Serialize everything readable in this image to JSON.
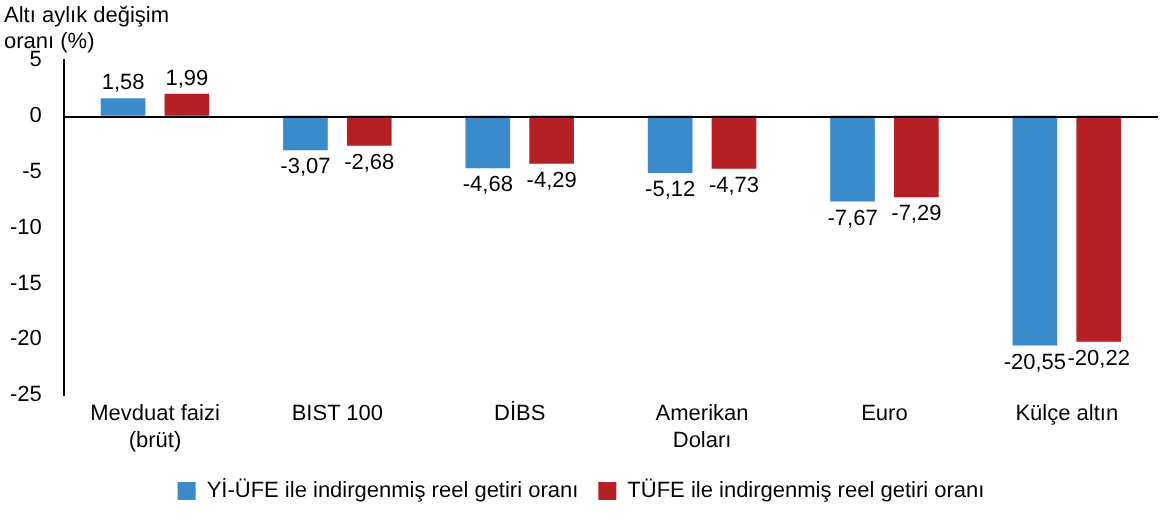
{
  "chart_data": {
    "type": "bar",
    "ylabel": "Altı aylık değişim oranı (%)",
    "categories": [
      "Mevduat faizi (brüt)",
      "BIST 100",
      "DİBS",
      "Amerikan Doları",
      "Euro",
      "Külçe altın"
    ],
    "series": [
      {
        "name": "Yİ-ÜFE ile indirgenmiş reel getiri oranı",
        "color": "#3b8bcb",
        "values": [
          1.58,
          -3.07,
          -4.68,
          -5.12,
          -7.67,
          -20.55
        ],
        "value_labels": [
          "1,58",
          "-3,07",
          "-4,68",
          "-5,12",
          "-7,67",
          "-20,55"
        ]
      },
      {
        "name": "TÜFE ile indirgenmiş reel getiri oranı",
        "color": "#b52025",
        "values": [
          1.99,
          -2.68,
          -4.29,
          -4.73,
          -7.29,
          -20.22
        ],
        "value_labels": [
          "1,99",
          "-2,68",
          "-4,29",
          "-4,73",
          "-7,29",
          "-20,22"
        ]
      }
    ],
    "ylim": [
      -25,
      5
    ],
    "yticks": [
      5,
      0,
      -5,
      -10,
      -15,
      -20,
      -25
    ],
    "grid": false,
    "ref_lines": [
      {
        "axis": "y",
        "value": 0,
        "color": "#000000"
      }
    ],
    "legend": "bottom"
  }
}
